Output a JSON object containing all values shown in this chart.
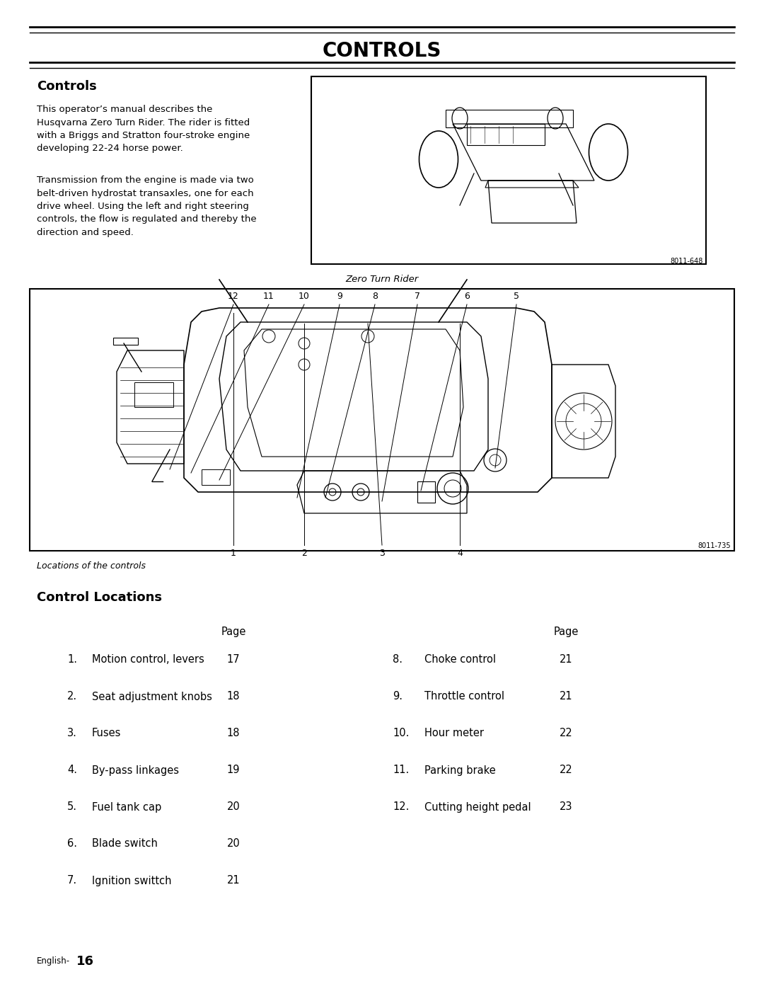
{
  "title": "CONTROLS",
  "section1_title": "Controls",
  "section1_para1": "This operator’s manual describes the\nHusqvarna Zero Turn Rider. The rider is fitted\nwith a Briggs and Stratton four-stroke engine\ndeveloping 22-24 horse power.",
  "section1_para2": "Transmission from the engine is made via two\nbelt-driven hydrostat transaxles, one for each\ndrive wheel. Using the left and right steering\ncontrols, the flow is regulated and thereby the\ndirection and speed.",
  "fig1_code": "8011-648",
  "fig1_caption": "Zero Turn Rider",
  "fig2_code": "8011-735",
  "fig2_caption": "Locations of the controls",
  "section2_title": "Control Locations",
  "col_header": "Page",
  "left_items": [
    {
      "num": "1.",
      "label": "Motion control, levers",
      "page": "17"
    },
    {
      "num": "2.",
      "label": "Seat adjustment knobs",
      "page": "18"
    },
    {
      "num": "3.",
      "label": "Fuses",
      "page": "18"
    },
    {
      "num": "4.",
      "label": "By-pass linkages",
      "page": "19"
    },
    {
      "num": "5.",
      "label": "Fuel tank cap",
      "page": "20"
    },
    {
      "num": "6.",
      "label": "Blade switch",
      "page": "20"
    },
    {
      "num": "7.",
      "label": "Ignition swittch",
      "page": "21"
    }
  ],
  "right_items": [
    {
      "num": "8.",
      "label": "Choke control",
      "page": "21"
    },
    {
      "num": "9.",
      "label": "Throttle control",
      "page": "21"
    },
    {
      "num": "10.",
      "label": "Hour meter",
      "page": "22"
    },
    {
      "num": "11.",
      "label": "Parking brake",
      "page": "22"
    },
    {
      "num": "12.",
      "label": "Cutting height pedal",
      "page": "23"
    }
  ],
  "footer_text": "English-",
  "footer_page": "16",
  "bg_color": "#ffffff",
  "text_color": "#000000",
  "title_fontsize": 20,
  "section_title_fontsize": 13,
  "body_fontsize": 9.5,
  "table_fontsize": 10.5,
  "footer_fontsize": 8.5
}
